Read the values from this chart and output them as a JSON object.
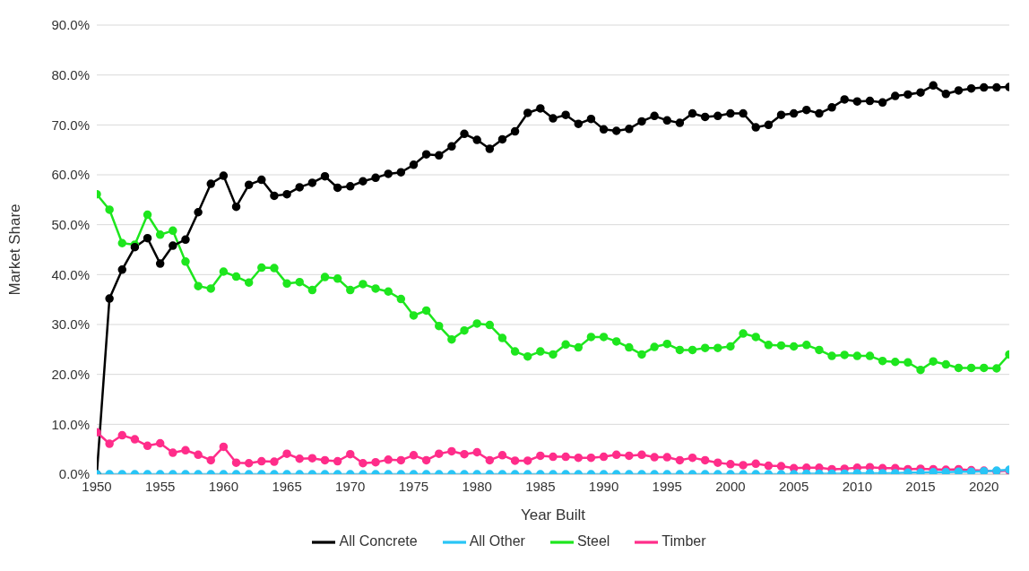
{
  "chart_data": {
    "type": "line",
    "xlabel": "Year Built",
    "ylabel": "Market Share",
    "x": [
      1950,
      1951,
      1952,
      1953,
      1954,
      1955,
      1956,
      1957,
      1958,
      1959,
      1960,
      1961,
      1962,
      1963,
      1964,
      1965,
      1966,
      1967,
      1968,
      1969,
      1970,
      1971,
      1972,
      1973,
      1974,
      1975,
      1976,
      1977,
      1978,
      1979,
      1980,
      1981,
      1982,
      1983,
      1984,
      1985,
      1986,
      1987,
      1988,
      1989,
      1990,
      1991,
      1992,
      1993,
      1994,
      1995,
      1996,
      1997,
      1998,
      1999,
      2000,
      2001,
      2002,
      2003,
      2004,
      2005,
      2006,
      2007,
      2008,
      2009,
      2010,
      2011,
      2012,
      2013,
      2014,
      2015,
      2016,
      2017,
      2018,
      2019,
      2020,
      2021,
      2022
    ],
    "series": [
      {
        "name": "Steel",
        "color": "#1ee61e",
        "values": [
          56.1,
          53,
          46.3,
          46,
          52,
          48,
          48.8,
          42.6,
          37.7,
          37.2,
          40.6,
          39.6,
          38.4,
          41.4,
          41.3,
          38.2,
          38.5,
          36.9,
          39.5,
          39.2,
          36.9,
          38.1,
          37.2,
          36.6,
          35.1,
          31.8,
          32.8,
          29.7,
          27,
          28.8,
          30.2,
          29.9,
          27.3,
          24.6,
          23.6,
          24.6,
          24,
          26,
          25.4,
          27.5,
          27.5,
          26.6,
          25.4,
          24,
          25.5,
          26.1,
          24.9,
          24.9,
          25.3,
          25.3,
          25.6,
          28.2,
          27.5,
          25.9,
          25.8,
          25.6,
          25.9,
          24.9,
          23.7,
          23.9,
          23.7,
          23.7,
          22.7,
          22.5,
          22.4,
          20.9,
          22.6,
          22,
          21.3,
          21.3,
          21.3,
          21.2,
          24
        ]
      },
      {
        "name": "All Concrete",
        "color": "#000000",
        "values": [
          0,
          35.2,
          41,
          45.5,
          47.3,
          42.2,
          45.8,
          47,
          52.5,
          58.2,
          59.8,
          53.6,
          58,
          59,
          55.8,
          56.1,
          57.5,
          58.4,
          59.7,
          57.4,
          57.7,
          58.7,
          59.4,
          60.2,
          60.5,
          62,
          64.1,
          63.9,
          65.7,
          68.2,
          67,
          65.2,
          67.1,
          68.7,
          72.4,
          73.3,
          71.3,
          72,
          70.2,
          71.2,
          69.1,
          68.8,
          69.2,
          70.7,
          71.8,
          70.9,
          70.4,
          72.3,
          71.6,
          71.8,
          72.3,
          72.3,
          69.5,
          70,
          72,
          72.3,
          73,
          72.3,
          73.5,
          75.1,
          74.7,
          74.8,
          74.5,
          75.8,
          76.1,
          76.5,
          77.9,
          76.2,
          76.9,
          77.3,
          77.5,
          77.5,
          77.6
        ]
      },
      {
        "name": "Timber",
        "color": "#ff2d8a",
        "values": [
          8.4,
          6.1,
          7.8,
          7,
          5.7,
          6.2,
          4.3,
          4.8,
          3.9,
          2.8,
          5.5,
          2.3,
          2.2,
          2.6,
          2.5,
          4.1,
          3.1,
          3.2,
          2.8,
          2.6,
          4,
          2.2,
          2.4,
          2.9,
          2.8,
          3.8,
          2.8,
          4.1,
          4.6,
          4,
          4.4,
          2.8,
          3.8,
          2.7,
          2.7,
          3.7,
          3.5,
          3.5,
          3.3,
          3.3,
          3.5,
          3.9,
          3.7,
          3.9,
          3.4,
          3.4,
          2.8,
          3.3,
          2.8,
          2.3,
          2,
          1.8,
          2.1,
          1.7,
          1.6,
          1.2,
          1.3,
          1.3,
          1,
          1.1,
          1.3,
          1.4,
          1.2,
          1.2,
          1,
          1.1,
          1,
          0.9,
          1,
          0.8,
          0.7,
          0.6,
          0.7
        ]
      },
      {
        "name": "All Other",
        "color": "#29c5f6",
        "values": [
          0,
          0,
          0,
          0,
          0,
          0,
          0,
          0,
          0,
          0,
          0,
          0,
          0,
          0,
          0,
          0,
          0,
          0,
          0,
          0,
          0,
          0,
          0,
          0,
          0,
          0,
          0,
          0,
          0,
          0,
          0,
          0,
          0,
          0,
          0,
          0,
          0,
          0,
          0,
          0,
          0,
          0,
          0,
          0,
          0,
          0,
          0,
          0,
          0,
          0,
          0,
          0,
          0,
          0,
          0,
          0,
          0.1,
          0.1,
          0.1,
          0.1,
          0.2,
          0.2,
          0.2,
          0.2,
          0.3,
          0.3,
          0.4,
          0.4,
          0.5,
          0.5,
          0.6,
          0.7,
          0.9
        ]
      }
    ],
    "xlim": [
      1950,
      2022
    ],
    "xticks": [
      1950,
      1955,
      1960,
      1965,
      1970,
      1975,
      1980,
      1985,
      1990,
      1995,
      2000,
      2005,
      2010,
      2015,
      2020
    ],
    "ylim": [
      0,
      90
    ],
    "yticks": [
      {
        "value": 0,
        "label": "0.0%"
      },
      {
        "value": 10,
        "label": "10.0%"
      },
      {
        "value": 20,
        "label": "20.0%"
      },
      {
        "value": 30,
        "label": "30.0%"
      },
      {
        "value": 40,
        "label": "40.0%"
      },
      {
        "value": 50,
        "label": "50.0%"
      },
      {
        "value": 60,
        "label": "60.0%"
      },
      {
        "value": 70,
        "label": "70.0%"
      },
      {
        "value": 80,
        "label": "80.0%"
      },
      {
        "value": 90,
        "label": "90.0%"
      }
    ],
    "grid": "y",
    "legend": "bottom",
    "marker": "circle",
    "line_style": "solid"
  }
}
